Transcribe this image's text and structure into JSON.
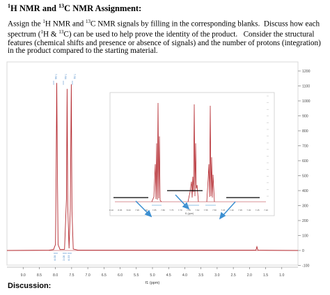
{
  "header": {
    "title_html": "<sup>1</sup>H NMR and <sup>13</sup>C NMR Assignment:"
  },
  "instructions": {
    "text_html": "Assign the <sup>1</sup>H NMR and <sup>13</sup>C NMR signals by filling in the corresponding blanks.&nbsp; Discuss how each spectrum (<sup>1</sup>H &amp; <sup>13</sup>C) can be used to help prove the identity of the product.&nbsp;&nbsp; Consider the structural features (chemical shifts and presence or absence of signals) and the number of protons (integration) in the product compared to the starting material."
  },
  "chart_data": {
    "type": "line",
    "xlabel": "f1 (ppm)",
    "xlim": [
      9.5,
      0.5
    ],
    "x_ticks": [
      "9.0",
      "8.5",
      "8.0",
      "7.5",
      "7.0",
      "6.5",
      "6.0",
      "5.5",
      "5.0",
      "4.5",
      "4.0",
      "3.5",
      "3.0",
      "2.5",
      "2.0",
      "1.5",
      "1.0"
    ],
    "ylim": [
      -100,
      1200
    ],
    "y_ticks": [
      "1200",
      "1100",
      "1000",
      "900",
      "800",
      "700",
      "600",
      "500",
      "400",
      "300",
      "200",
      "100",
      "0",
      "-100"
    ],
    "peak_labels": [
      "7.96",
      "7.64",
      "7.51"
    ],
    "integrations": [
      "4.00",
      "2.05",
      "4.10"
    ],
    "series": [
      {
        "x": [
          9.5,
          8.2,
          8.06,
          8.0,
          7.98,
          7.96,
          7.94,
          7.92,
          7.86,
          7.72,
          7.66,
          7.64,
          7.62,
          7.58,
          7.54,
          7.51,
          7.49,
          7.45,
          7.3,
          1.8,
          1.77,
          1.74,
          0.5
        ],
        "y": [
          0,
          2,
          6,
          40,
          500,
          1120,
          500,
          40,
          6,
          8,
          350,
          1080,
          300,
          14,
          280,
          1110,
          260,
          10,
          2,
          2,
          25,
          2,
          0
        ]
      }
    ],
    "inset": {
      "type": "line",
      "x_ticks": [
        "8.10",
        "8.05",
        "8.00",
        "7.95",
        "7.90",
        "7.85",
        "7.80",
        "7.75",
        "7.70",
        "7.65",
        "7.60",
        "7.55",
        "7.50",
        "7.45",
        "7.40",
        "7.35",
        "7.30",
        "7.25",
        "7.20"
      ],
      "xlabel": "f1 (ppm)"
    }
  }
}
